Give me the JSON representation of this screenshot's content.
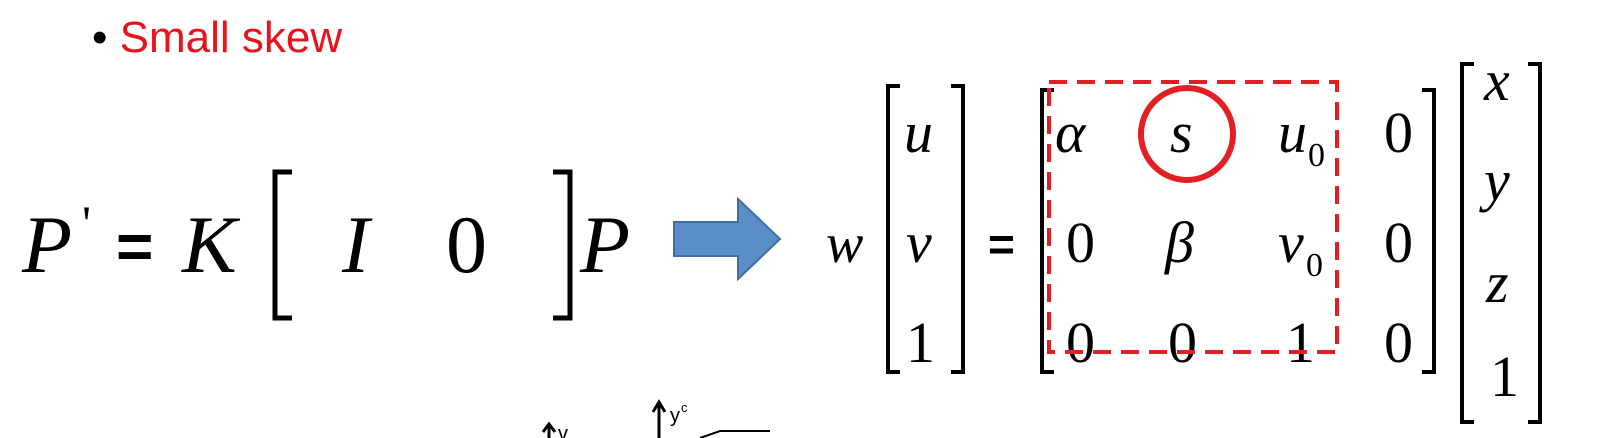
{
  "bullet": {
    "marker": "•",
    "text": "Small skew",
    "color": "#e8141b"
  },
  "lhs_equation": {
    "P_prime": "P",
    "prime": "'",
    "equals": "=",
    "K": "K",
    "I": "I",
    "zero": "0",
    "P": "P"
  },
  "arrow": {
    "color": "#5b8ec8"
  },
  "rhs_equation": {
    "w": "w",
    "lhs_vector": [
      "u",
      "v",
      "1"
    ],
    "equals": "=",
    "matrix": [
      [
        "α",
        "s",
        "u",
        "0"
      ],
      [
        "0",
        "β",
        "v",
        "0"
      ],
      [
        "0",
        "0",
        "1",
        "0"
      ]
    ],
    "subscript_zero": "0",
    "rhs_vector": [
      "x",
      "y",
      "z",
      "1"
    ],
    "highlight_color": "#e31e24"
  },
  "bottom_partial_labels": {
    "v": "v",
    "yc": "y",
    "c_sup": "c"
  }
}
